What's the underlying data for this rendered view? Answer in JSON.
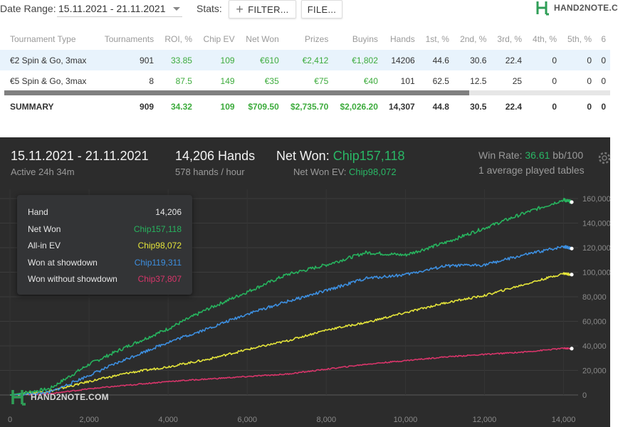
{
  "toolbar": {
    "date_range_label": "Date Range:",
    "date_range_value": "15.11.2021 - 21.11.2021",
    "stats_label": "Stats:",
    "filter_button": "FILTER...",
    "file_button": "FILE...",
    "logo_text": "HAND2NOTE.C"
  },
  "table": {
    "headers": [
      "Tournament Type",
      "Tournaments",
      "ROI, %",
      "Chip EV",
      "Net Won",
      "Prizes",
      "Buyins",
      "Hands",
      "1st, %",
      "2nd, %",
      "3rd, %",
      "4th, %",
      "5th, %",
      "6"
    ],
    "rows": [
      [
        "€2 Spin & Go, 3max",
        "901",
        "33.85",
        "109",
        "€610",
        "€2,412",
        "€1,802",
        "14206",
        "44.6",
        "30.6",
        "22.4",
        "0",
        "0",
        "0"
      ],
      [
        "€5 Spin & Go, 3max",
        "8",
        "87.5",
        "149",
        "€35",
        "€75",
        "€40",
        "101",
        "62.5",
        "12.5",
        "25",
        "0",
        "0",
        "0"
      ]
    ],
    "summary": [
      "SUMMARY",
      "909",
      "34.32",
      "109",
      "$709.50",
      "$2,735.70",
      "$2,026.20",
      "14,307",
      "44.8",
      "30.5",
      "22.4",
      "0",
      "0",
      "0"
    ]
  },
  "colors": {
    "net_won": "#27b35e",
    "allin_ev": "#e4e43a",
    "won_at_showdown": "#3d8fe0",
    "won_without_showdown": "#d8356a",
    "panel_bg": "#2c2c2c",
    "accent_green": "#29b765"
  },
  "summary_panel": {
    "date_range": "15.11.2021 - 21.11.2021",
    "active": "Active 24h 34m",
    "hands": "14,206 Hands",
    "hands_per_hour": "578 hands / hour",
    "net_won_label": "Net Won:",
    "net_won_value": "Chip157,118",
    "net_won_ev_label": "Net Won  EV:",
    "net_won_ev_value": "Chip98,072",
    "win_rate_label": "Win Rate:",
    "win_rate_value": "36.61",
    "win_rate_unit": "bb/100",
    "tables": "1 average played tables"
  },
  "tooltip": {
    "hand_label": "Hand",
    "hand_value": "14,206",
    "net_won_label": "Net Won",
    "net_won_value": "Chip157,118",
    "allin_ev_label": "All-in EV",
    "allin_ev_value": "Chip98,072",
    "wsd_label": "Won at showdown",
    "wsd_value": "Chip119,311",
    "wwsd_label": "Won without showdown",
    "wwsd_value": "Chip37,807"
  },
  "watermark": "HAND2NOTE.COM",
  "chart_data": {
    "type": "line",
    "x_ticks": [
      "0",
      "2,000",
      "4,000",
      "6,000",
      "8,000",
      "10,000",
      "12,000",
      "14,000"
    ],
    "y_ticks": [
      "0",
      "20,000",
      "40,000",
      "60,000",
      "80,000",
      "100,000",
      "120,000",
      "140,000",
      "160,000"
    ],
    "xlim": [
      0,
      14206
    ],
    "ylim": [
      0,
      160000
    ],
    "grid": true,
    "series": [
      {
        "name": "Net Won",
        "color": "#27b35e",
        "x": [
          0,
          1000,
          2000,
          3000,
          4000,
          5000,
          6000,
          7000,
          8000,
          9000,
          10000,
          11000,
          12000,
          13000,
          14000,
          14206
        ],
        "y": [
          0,
          5000,
          25000,
          40000,
          54000,
          70000,
          84000,
          98000,
          106000,
          116000,
          114000,
          124000,
          136000,
          148000,
          159000,
          157118
        ]
      },
      {
        "name": "All-in EV",
        "color": "#e4e43a",
        "x": [
          0,
          1000,
          2000,
          3000,
          4000,
          5000,
          6000,
          7000,
          8000,
          9000,
          10000,
          11000,
          12000,
          13000,
          14000,
          14206
        ],
        "y": [
          0,
          3000,
          11000,
          18000,
          23000,
          29000,
          37000,
          44000,
          53000,
          59000,
          67000,
          75000,
          81000,
          90000,
          99000,
          98072
        ]
      },
      {
        "name": "Won at showdown",
        "color": "#3d8fe0",
        "x": [
          0,
          1000,
          2000,
          3000,
          4000,
          5000,
          6000,
          7000,
          8000,
          9000,
          10000,
          11000,
          12000,
          13000,
          14000,
          14206
        ],
        "y": [
          0,
          2000,
          16000,
          30000,
          43000,
          54000,
          66000,
          76000,
          85000,
          95000,
          98000,
          105000,
          106000,
          114000,
          121000,
          119311
        ]
      },
      {
        "name": "Won without showdown",
        "color": "#d8356a",
        "x": [
          0,
          1000,
          2000,
          3000,
          4000,
          5000,
          6000,
          7000,
          8000,
          9000,
          10000,
          11000,
          12000,
          13000,
          14000,
          14206
        ],
        "y": [
          0,
          1000,
          5000,
          8000,
          11000,
          13000,
          15000,
          17000,
          21000,
          25000,
          28000,
          31000,
          33000,
          35000,
          38000,
          37807
        ]
      }
    ]
  }
}
